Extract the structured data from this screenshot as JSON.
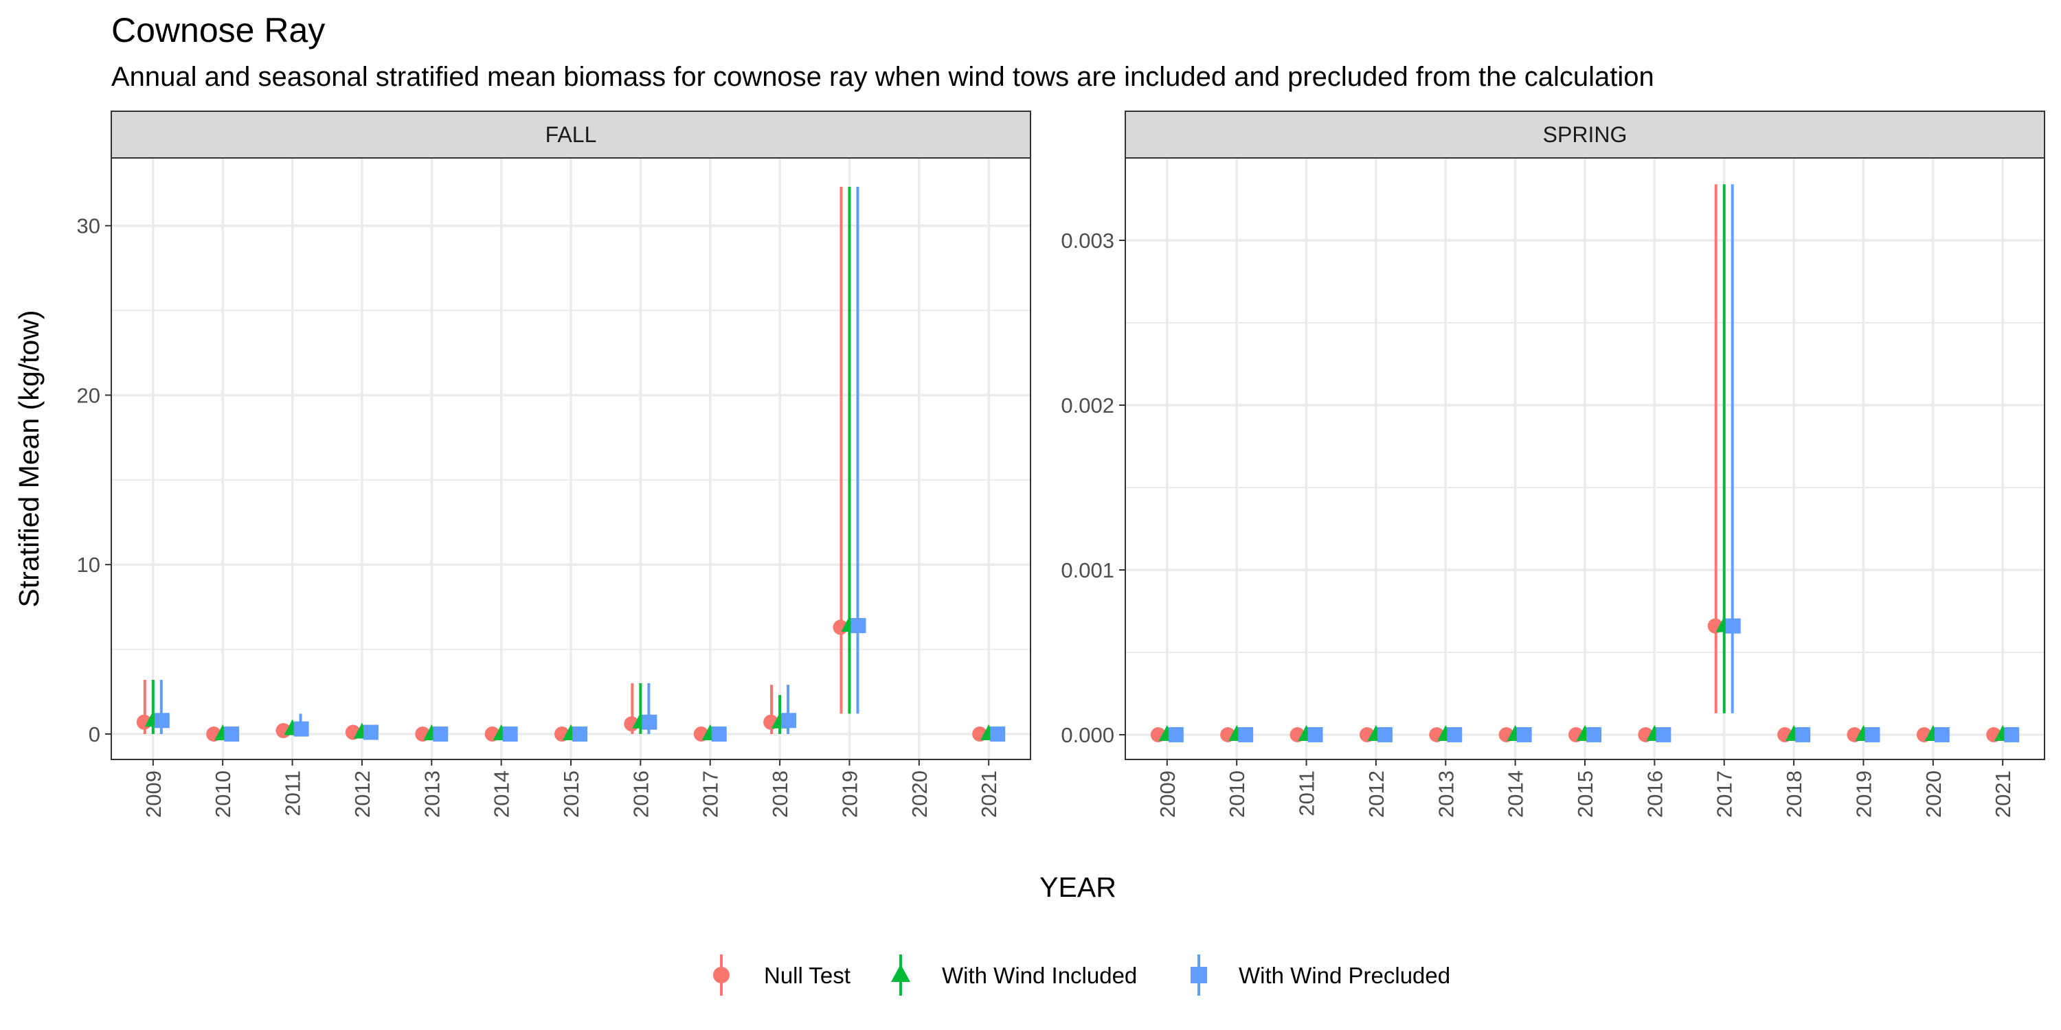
{
  "title": "Cownose Ray",
  "subtitle": "Annual and seasonal stratified mean biomass for cownose ray when wind tows are included and precluded from the calculation",
  "colors": {
    "Null Test": "#F8766D",
    "With Wind Included": "#00BA38",
    "With Wind Precluded": "#619CFF",
    "strip_fill": "#D9D9D9",
    "grid": "#EBEBEB",
    "panel_border": "#333333"
  },
  "chart_data": {
    "type": "scatter",
    "xlabel": "YEAR",
    "ylabel": "Stratified Mean (kg/tow)",
    "legend_position": "bottom",
    "legend_marks": {
      "Null Test": "circle",
      "With Wind Included": "triangle",
      "With Wind Precluded": "square"
    },
    "categories": [
      "2009",
      "2010",
      "2011",
      "2012",
      "2013",
      "2014",
      "2015",
      "2016",
      "2017",
      "2018",
      "2019",
      "2020",
      "2021"
    ],
    "series_names": [
      "Null Test",
      "With Wind Included",
      "With Wind Precluded"
    ],
    "panels": [
      {
        "facet": "FALL",
        "ylim": [
          -1.5,
          34
        ],
        "yticks": [
          0,
          10,
          20,
          30
        ],
        "ytick_labels": [
          "0",
          "10",
          "20",
          "30"
        ],
        "series": [
          {
            "name": "Null Test",
            "values": [
              0.7,
              0.0,
              0.2,
              0.1,
              0.0,
              0.0,
              0.0,
              0.6,
              0.0,
              0.7,
              6.3,
              null,
              0.0
            ],
            "lower": [
              0.0,
              0.0,
              0.0,
              0.0,
              0.0,
              0.0,
              0.0,
              0.0,
              0.0,
              0.0,
              1.2,
              null,
              0.0
            ],
            "upper": [
              3.2,
              0.0,
              0.4,
              0.2,
              0.0,
              0.0,
              0.0,
              3.0,
              0.0,
              2.9,
              32.3,
              null,
              0.0
            ]
          },
          {
            "name": "With Wind Included",
            "values": [
              0.8,
              0.0,
              0.3,
              0.1,
              0.0,
              0.0,
              0.0,
              0.7,
              0.0,
              0.7,
              6.4,
              null,
              0.0
            ],
            "lower": [
              0.0,
              0.0,
              0.0,
              0.0,
              0.0,
              0.0,
              0.0,
              0.0,
              0.0,
              0.0,
              1.2,
              null,
              0.0
            ],
            "upper": [
              3.2,
              0.0,
              0.6,
              0.2,
              0.0,
              0.0,
              0.0,
              3.0,
              0.0,
              2.3,
              32.3,
              null,
              0.0
            ]
          },
          {
            "name": "With Wind Precluded",
            "values": [
              0.8,
              0.0,
              0.3,
              0.1,
              0.0,
              0.0,
              0.0,
              0.7,
              0.0,
              0.8,
              6.4,
              null,
              0.0
            ],
            "lower": [
              0.0,
              0.0,
              0.0,
              0.0,
              0.0,
              0.0,
              0.0,
              0.0,
              0.0,
              0.0,
              1.2,
              null,
              0.0
            ],
            "upper": [
              3.2,
              0.0,
              1.2,
              0.2,
              0.0,
              0.0,
              0.0,
              3.0,
              0.0,
              2.9,
              32.3,
              null,
              0.0
            ]
          }
        ]
      },
      {
        "facet": "SPRING",
        "ylim": [
          -0.00015,
          0.0035
        ],
        "yticks": [
          0.0,
          0.001,
          0.002,
          0.003
        ],
        "ytick_labels": [
          "0.000",
          "0.001",
          "0.002",
          "0.003"
        ],
        "series": [
          {
            "name": "Null Test",
            "values": [
              0,
              0,
              0,
              0,
              0,
              0,
              0,
              0,
              0.00066,
              0,
              0,
              0,
              0
            ],
            "lower": [
              0,
              0,
              0,
              0,
              0,
              0,
              0,
              0,
              0.00013,
              0,
              0,
              0,
              0
            ],
            "upper": [
              0,
              0,
              0,
              0,
              0,
              0,
              0,
              0,
              0.00334,
              0,
              0,
              0,
              0
            ]
          },
          {
            "name": "With Wind Included",
            "values": [
              0,
              0,
              0,
              0,
              0,
              0,
              0,
              0,
              0.00066,
              0,
              0,
              0,
              0
            ],
            "lower": [
              0,
              0,
              0,
              0,
              0,
              0,
              0,
              0,
              0.00013,
              0,
              0,
              0,
              0
            ],
            "upper": [
              0,
              0,
              0,
              0,
              0,
              0,
              0,
              0,
              0.00334,
              0,
              0,
              0,
              0
            ]
          },
          {
            "name": "With Wind Precluded",
            "values": [
              0,
              0,
              0,
              0,
              0,
              0,
              0,
              0,
              0.00066,
              0,
              0,
              0,
              0
            ],
            "lower": [
              0,
              0,
              0,
              0,
              0,
              0,
              0,
              0,
              0.00013,
              0,
              0,
              0,
              0
            ],
            "upper": [
              0,
              0,
              0,
              0,
              0,
              0,
              0,
              0,
              0.00334,
              0,
              0,
              0,
              0
            ]
          }
        ]
      }
    ]
  }
}
